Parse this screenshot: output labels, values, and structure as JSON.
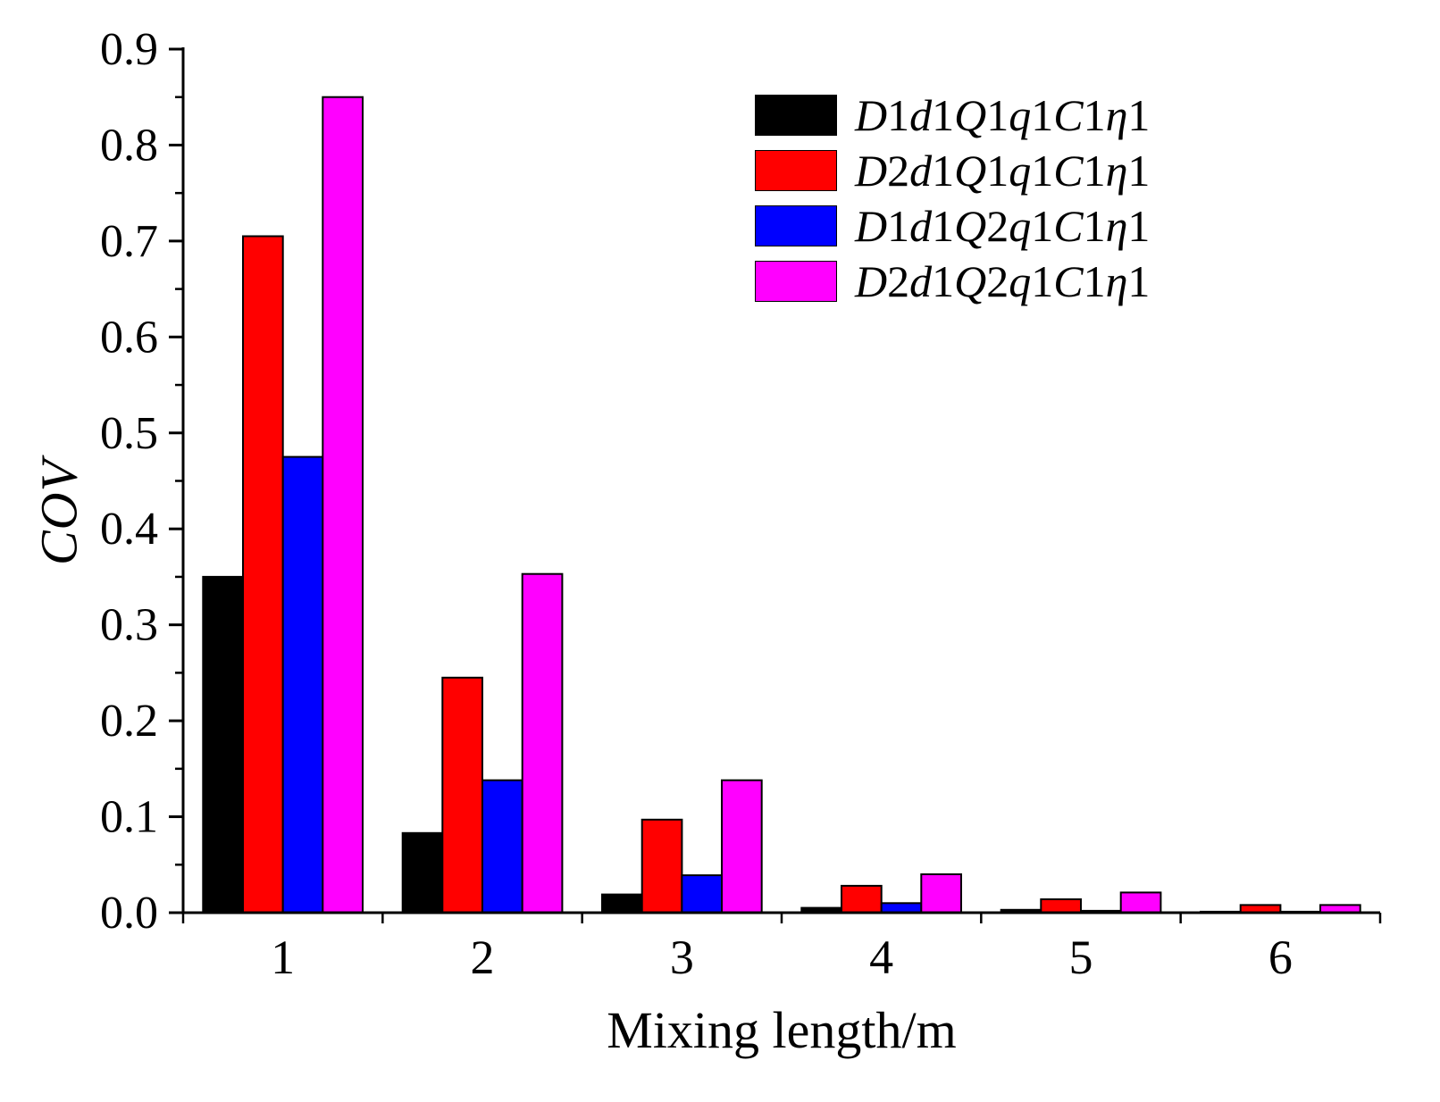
{
  "chart_data": {
    "type": "bar",
    "title": "",
    "xlabel": "Mixing length/m",
    "ylabel": "COV",
    "categories": [
      "1",
      "2",
      "3",
      "4",
      "5",
      "6"
    ],
    "ylim": [
      0,
      0.9
    ],
    "ytick_step": 0.1,
    "ytick_minor_step": 0.05,
    "ytick_labels": [
      "0.0",
      "0.1",
      "0.2",
      "0.3",
      "0.4",
      "0.5",
      "0.6",
      "0.7",
      "0.8",
      "0.9"
    ],
    "grid": false,
    "legend_position": "top-right",
    "series": [
      {
        "name": "D1d1Q1q1C1η1",
        "color": "#000000",
        "values": [
          0.35,
          0.083,
          0.019,
          0.005,
          0.003,
          0.001
        ]
      },
      {
        "name": "D2d1Q1q1C1η1",
        "color": "#ff0000",
        "values": [
          0.705,
          0.245,
          0.097,
          0.028,
          0.014,
          0.008
        ]
      },
      {
        "name": "D1d1Q2q1C1η1",
        "color": "#0000ff",
        "values": [
          0.475,
          0.138,
          0.039,
          0.01,
          0.002,
          0.001
        ]
      },
      {
        "name": "D2d1Q2q1C1η1",
        "color": "#ff00ff",
        "values": [
          0.85,
          0.353,
          0.138,
          0.04,
          0.021,
          0.008
        ]
      }
    ]
  }
}
